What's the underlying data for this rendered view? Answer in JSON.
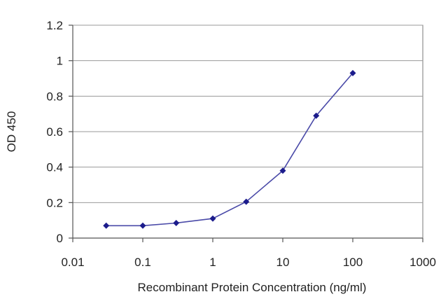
{
  "chart_data": {
    "type": "line",
    "title": "",
    "xlabel": "Recombinant Protein Concentration (ng/ml)",
    "ylabel": "OD 450",
    "x_scale": "log",
    "xlim": [
      0.01,
      1000
    ],
    "ylim": [
      0,
      1.2
    ],
    "grid": "horizontal",
    "legend": "none",
    "x_ticks": [
      "0.01",
      "0.1",
      "1",
      "10",
      "100",
      "1000"
    ],
    "y_ticks": [
      "0",
      "0.2",
      "0.4",
      "0.6",
      "0.8",
      "1",
      "1.2"
    ],
    "line_color": "#4a4aa8",
    "marker_color": "#1c1c8c",
    "series": [
      {
        "x": [
          0.03,
          0.1,
          0.3,
          1,
          3,
          10,
          30,
          100
        ],
        "y": [
          0.07,
          0.07,
          0.085,
          0.11,
          0.205,
          0.38,
          0.69,
          0.93
        ]
      }
    ]
  }
}
